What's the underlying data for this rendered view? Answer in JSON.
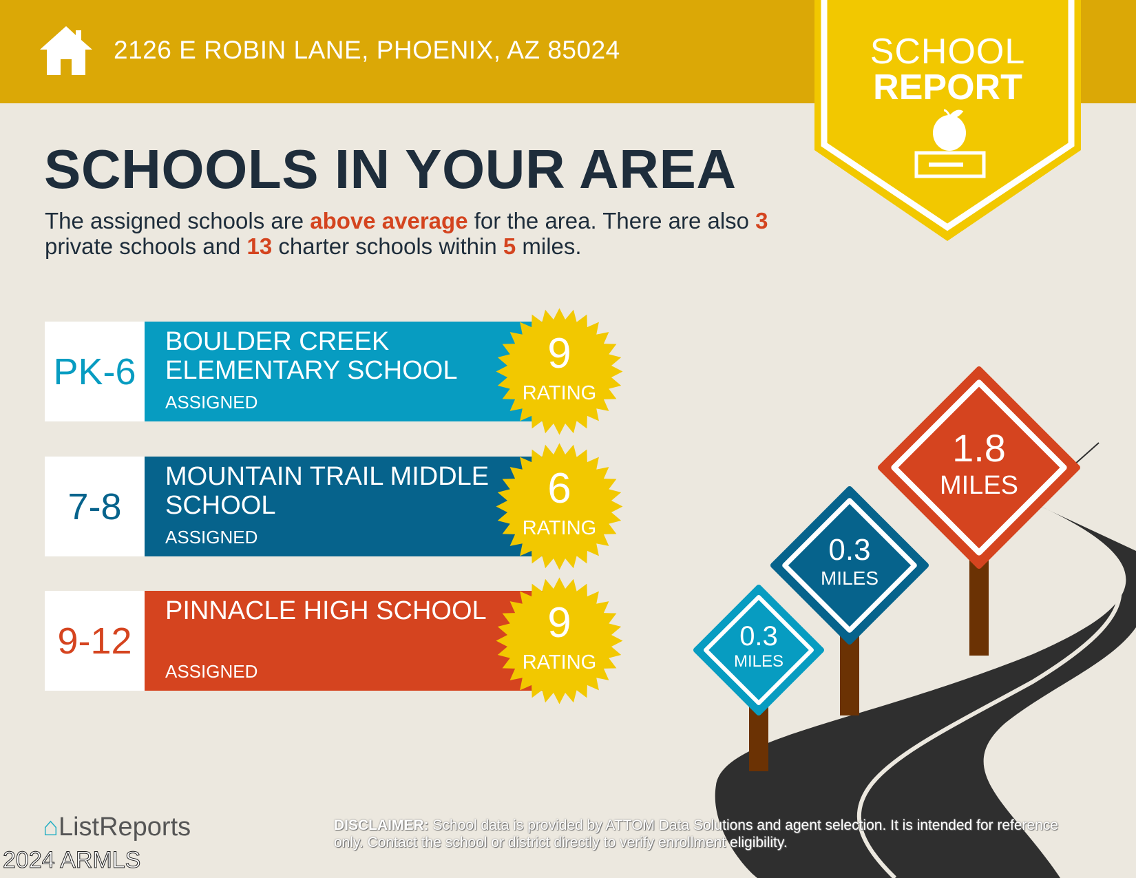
{
  "header": {
    "address": "2126 E ROBIN LANE, PHOENIX, AZ 85024",
    "icon": "home-icon"
  },
  "badge": {
    "line1": "SCHOOL",
    "line2": "REPORT",
    "icon": "apple-book-icon"
  },
  "title": "SCHOOLS IN YOUR AREA",
  "summary": {
    "p1": "The assigned schools are ",
    "highlight": "above average",
    "p2": " for the area. There are also ",
    "private": "3",
    "p3": " private schools and ",
    "charter": "13",
    "p4": " charter schools within ",
    "miles": "5",
    "p5": " miles."
  },
  "schools": [
    {
      "grade": "PK-6",
      "name": "BOULDER CREEK ELEMENTARY SCHOOL",
      "status": "ASSIGNED",
      "rating": "9",
      "rating_label": "RATING",
      "distance": "0.3",
      "unit": "MILES",
      "color": "#079cc1"
    },
    {
      "grade": "7-8",
      "name": "MOUNTAIN TRAIL MIDDLE SCHOOL",
      "status": "ASSIGNED",
      "rating": "6",
      "rating_label": "RATING",
      "distance": "0.3",
      "unit": "MILES",
      "color": "#06638c"
    },
    {
      "grade": "9-12",
      "name": "PINNACLE HIGH SCHOOL",
      "status": "ASSIGNED",
      "rating": "9",
      "rating_label": "RATING",
      "distance": "1.8",
      "unit": "MILES",
      "color": "#d5441f"
    }
  ],
  "footer": {
    "logo": "ListReports",
    "watermark": "2024 ARMLS",
    "disclaimer_label": "DISCLAIMER:",
    "disclaimer": " School data is provided by ATTOM Data Solutions and agent selection. It is intended for reference only. Contact the school or district directly to verify enrollment eligibility."
  },
  "colors": {
    "header": "#dba806",
    "badge": "#f2c800",
    "accent": "#d4441f",
    "star": "#f2c800",
    "text": "#1e2d3b"
  }
}
